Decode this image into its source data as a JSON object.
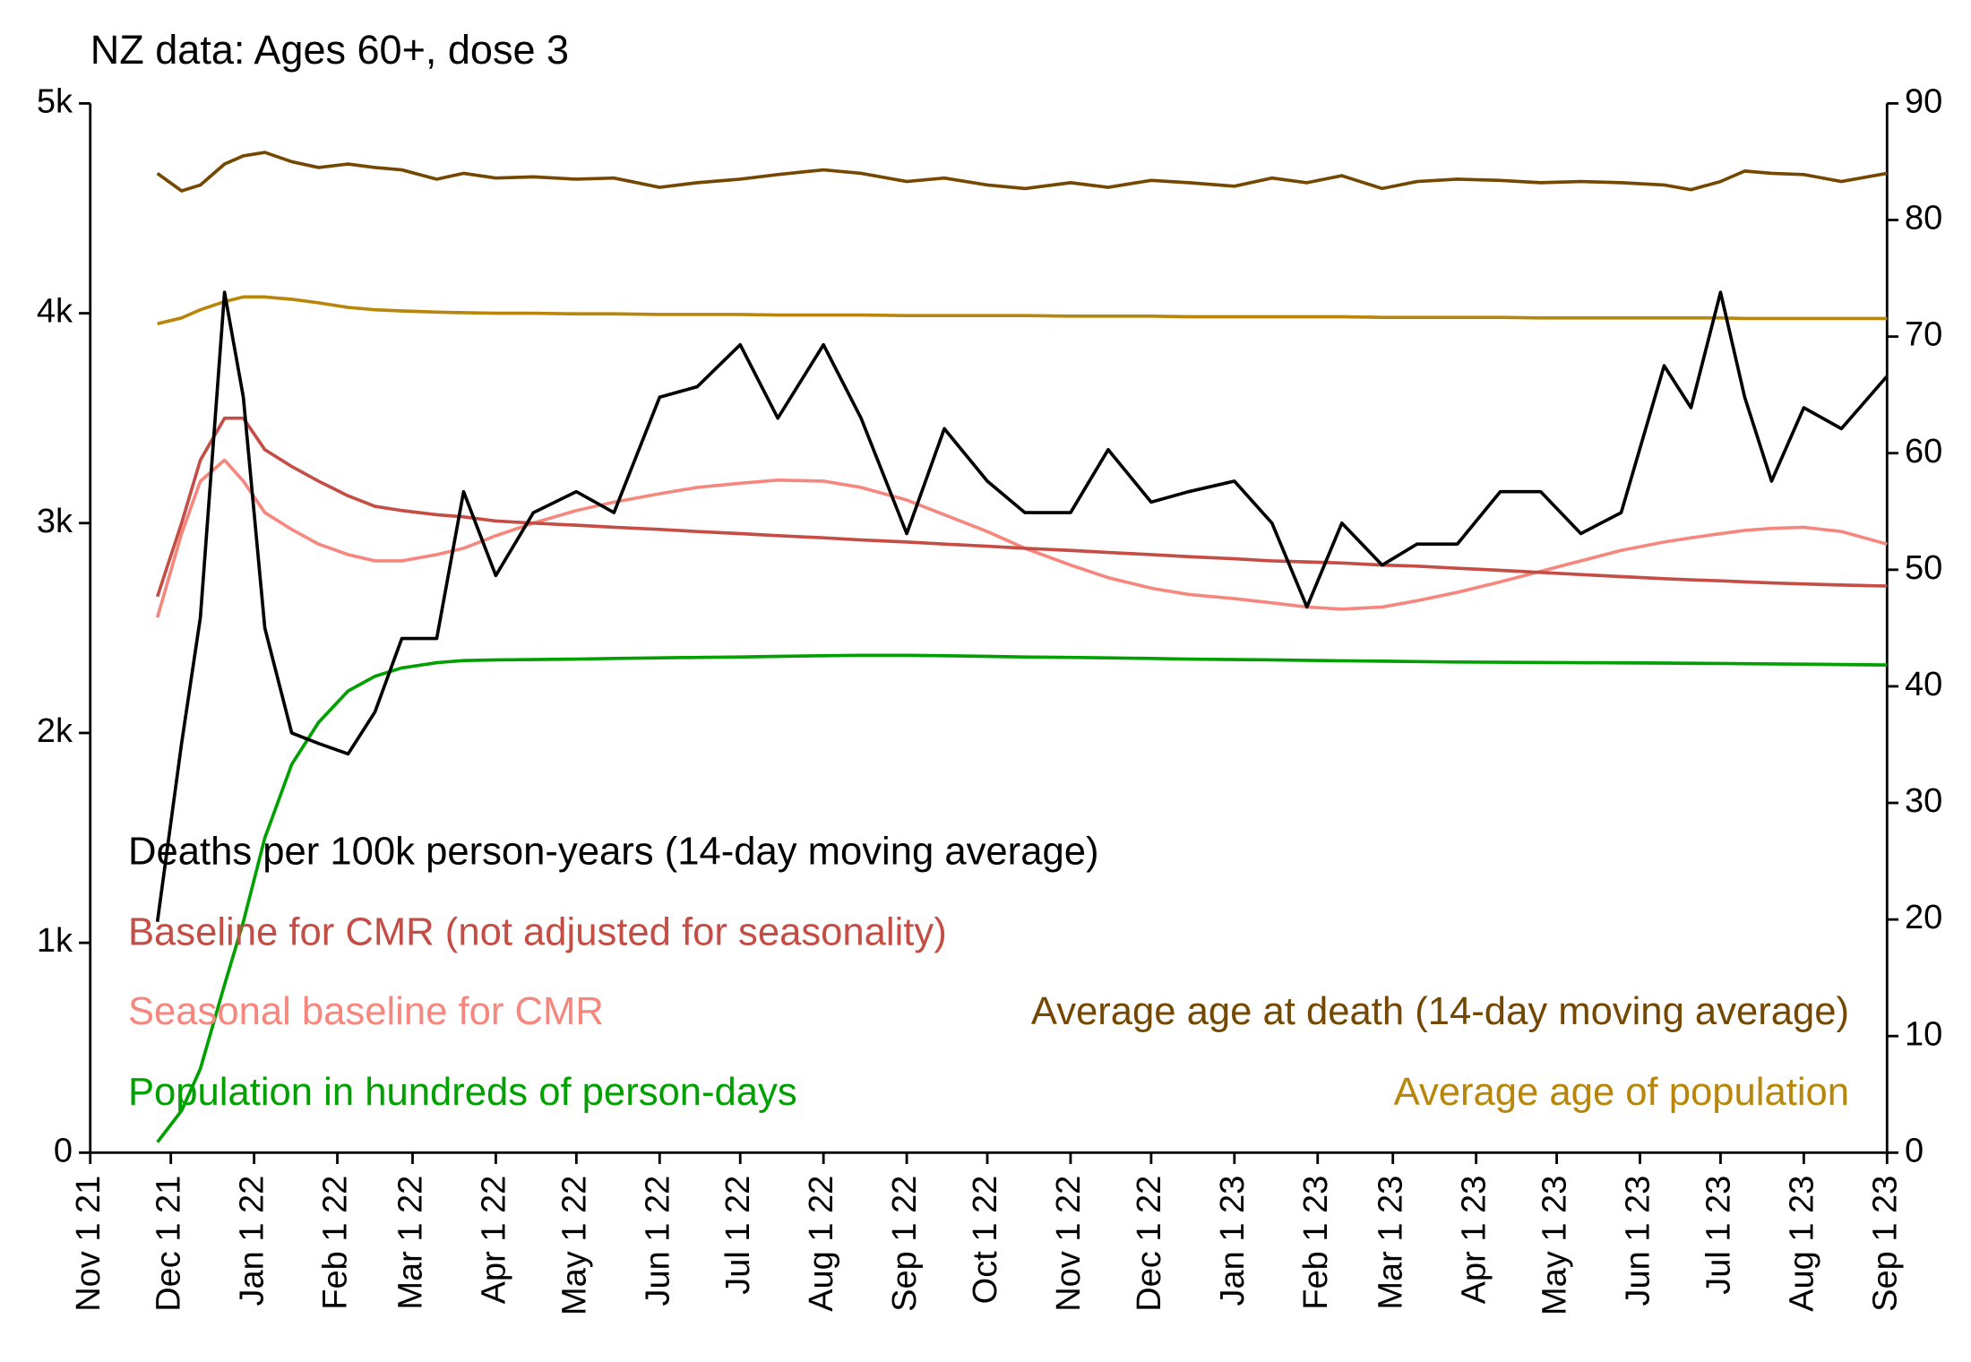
{
  "chart_data": {
    "type": "line",
    "title": "NZ data: Ages 60+, dose 3",
    "x": [
      "2021-11-26",
      "2021-12-05",
      "2021-12-12",
      "2021-12-21",
      "2021-12-28",
      "2022-01-05",
      "2022-01-15",
      "2022-01-25",
      "2022-02-05",
      "2022-02-15",
      "2022-02-25",
      "2022-03-10",
      "2022-03-20",
      "2022-04-01",
      "2022-04-15",
      "2022-05-01",
      "2022-05-15",
      "2022-06-01",
      "2022-06-15",
      "2022-07-01",
      "2022-07-15",
      "2022-08-01",
      "2022-08-15",
      "2022-09-01",
      "2022-09-15",
      "2022-10-01",
      "2022-10-15",
      "2022-11-01",
      "2022-11-15",
      "2022-12-01",
      "2022-12-15",
      "2023-01-01",
      "2023-01-15",
      "2023-01-28",
      "2023-02-10",
      "2023-02-25",
      "2023-03-10",
      "2023-03-25",
      "2023-04-10",
      "2023-04-25",
      "2023-05-10",
      "2023-05-25",
      "2023-06-10",
      "2023-06-20",
      "2023-07-01",
      "2023-07-10",
      "2023-07-20",
      "2023-08-01",
      "2023-08-15",
      "2023-09-01"
    ],
    "xlim": [
      "2021-11-01",
      "2023-09-01"
    ],
    "xticks": [
      {
        "value": "2021-11-01",
        "label": "Nov 1 21"
      },
      {
        "value": "2021-12-01",
        "label": "Dec 1 21"
      },
      {
        "value": "2022-01-01",
        "label": "Jan 1 22"
      },
      {
        "value": "2022-02-01",
        "label": "Feb 1 22"
      },
      {
        "value": "2022-03-01",
        "label": "Mar 1 22"
      },
      {
        "value": "2022-04-01",
        "label": "Apr 1 22"
      },
      {
        "value": "2022-05-01",
        "label": "May 1 22"
      },
      {
        "value": "2022-06-01",
        "label": "Jun 1 22"
      },
      {
        "value": "2022-07-01",
        "label": "Jul 1 22"
      },
      {
        "value": "2022-08-01",
        "label": "Aug 1 22"
      },
      {
        "value": "2022-09-01",
        "label": "Sep 1 22"
      },
      {
        "value": "2022-10-01",
        "label": "Oct 1 22"
      },
      {
        "value": "2022-11-01",
        "label": "Nov 1 22"
      },
      {
        "value": "2022-12-01",
        "label": "Dec 1 22"
      },
      {
        "value": "2023-01-01",
        "label": "Jan 1 23"
      },
      {
        "value": "2023-02-01",
        "label": "Feb 1 23"
      },
      {
        "value": "2023-03-01",
        "label": "Mar 1 23"
      },
      {
        "value": "2023-04-01",
        "label": "Apr 1 23"
      },
      {
        "value": "2023-05-01",
        "label": "May 1 23"
      },
      {
        "value": "2023-06-01",
        "label": "Jun 1 23"
      },
      {
        "value": "2023-07-01",
        "label": "Jul 1 23"
      },
      {
        "value": "2023-08-01",
        "label": "Aug 1 23"
      },
      {
        "value": "2023-09-01",
        "label": "Sep 1 23"
      }
    ],
    "ylim": [
      0,
      5000
    ],
    "yticks": [
      0,
      {
        "value": 1000,
        "label": "1k"
      },
      {
        "value": 2000,
        "label": "2k"
      },
      {
        "value": 3000,
        "label": "3k"
      },
      {
        "value": 4000,
        "label": "4k"
      },
      {
        "value": 5000,
        "label": "5k"
      }
    ],
    "y2lim": [
      0,
      90
    ],
    "y2ticks": [
      0,
      10,
      20,
      30,
      40,
      50,
      60,
      70,
      80,
      90
    ],
    "series": [
      {
        "name": "Deaths per 100k person-years (14-day moving average)",
        "color": "#000000",
        "values": [
          1100,
          1950,
          2550,
          4100,
          3600,
          2500,
          2000,
          1950,
          1900,
          2100,
          2450,
          2450,
          3150,
          2750,
          3050,
          3150,
          3050,
          3600,
          3650,
          3850,
          3500,
          3850,
          3500,
          2950,
          3450,
          3200,
          3050,
          3050,
          3350,
          3100,
          3150,
          3200,
          3000,
          2600,
          3000,
          2800,
          2900,
          2900,
          3150,
          3150,
          2950,
          3050,
          3750,
          3550,
          4100,
          3600,
          3200,
          3550,
          3450,
          3700
        ]
      },
      {
        "name": "Baseline for CMR (not adjusted for seasonality)",
        "color": "#c44e45",
        "values": [
          2650,
          3000,
          3300,
          3500,
          3500,
          3350,
          3270,
          3200,
          3130,
          3080,
          3060,
          3040,
          3030,
          3010,
          3000,
          2990,
          2980,
          2970,
          2960,
          2950,
          2940,
          2930,
          2920,
          2910,
          2900,
          2890,
          2880,
          2870,
          2860,
          2850,
          2840,
          2830,
          2820,
          2815,
          2810,
          2800,
          2795,
          2785,
          2775,
          2765,
          2755,
          2745,
          2735,
          2730,
          2725,
          2720,
          2715,
          2710,
          2705,
          2700
        ]
      },
      {
        "name": "Seasonal baseline for CMR",
        "color": "#f5877e",
        "values": [
          2550,
          2950,
          3200,
          3300,
          3200,
          3050,
          2970,
          2900,
          2850,
          2820,
          2820,
          2850,
          2880,
          2940,
          3000,
          3060,
          3100,
          3140,
          3170,
          3190,
          3205,
          3200,
          3170,
          3110,
          3040,
          2960,
          2880,
          2800,
          2740,
          2690,
          2660,
          2640,
          2620,
          2600,
          2590,
          2600,
          2630,
          2670,
          2720,
          2770,
          2820,
          2870,
          2910,
          2930,
          2950,
          2965,
          2975,
          2980,
          2960,
          2900
        ]
      },
      {
        "name": "Population in hundreds of person-days",
        "color": "#00a000",
        "values": [
          50,
          200,
          400,
          800,
          1100,
          1500,
          1850,
          2050,
          2200,
          2270,
          2310,
          2335,
          2345,
          2348,
          2350,
          2352,
          2355,
          2358,
          2360,
          2362,
          2365,
          2368,
          2370,
          2370,
          2368,
          2365,
          2362,
          2360,
          2358,
          2355,
          2352,
          2350,
          2348,
          2346,
          2344,
          2342,
          2340,
          2338,
          2337,
          2336,
          2335,
          2334,
          2333,
          2332,
          2331,
          2330,
          2329,
          2328,
          2326,
          2324
        ]
      },
      {
        "name": "Average age at death (14-day moving average)",
        "color": "#744800",
        "axis": "y2",
        "values": [
          84.0,
          82.5,
          83.0,
          84.8,
          85.5,
          85.8,
          85.0,
          84.5,
          84.8,
          84.5,
          84.3,
          83.5,
          84.0,
          83.6,
          83.7,
          83.5,
          83.6,
          82.8,
          83.2,
          83.5,
          83.9,
          84.3,
          84.0,
          83.3,
          83.6,
          83.0,
          82.7,
          83.2,
          82.8,
          83.4,
          83.2,
          82.9,
          83.6,
          83.2,
          83.8,
          82.7,
          83.3,
          83.5,
          83.4,
          83.2,
          83.3,
          83.2,
          83.0,
          82.6,
          83.3,
          84.2,
          84.0,
          83.9,
          83.3,
          84.0
        ]
      },
      {
        "name": "Average age of population",
        "color": "#b8860b",
        "axis": "y2",
        "values": [
          71.1,
          71.6,
          72.3,
          73.0,
          73.4,
          73.4,
          73.2,
          72.9,
          72.5,
          72.3,
          72.2,
          72.1,
          72.05,
          72.0,
          72.0,
          71.95,
          71.95,
          71.9,
          71.9,
          71.9,
          71.85,
          71.85,
          71.85,
          71.8,
          71.8,
          71.8,
          71.8,
          71.75,
          71.75,
          71.75,
          71.7,
          71.7,
          71.7,
          71.7,
          71.7,
          71.65,
          71.65,
          71.65,
          71.65,
          71.6,
          71.6,
          71.6,
          71.6,
          71.6,
          71.6,
          71.55,
          71.55,
          71.55,
          71.55,
          71.55
        ]
      }
    ]
  }
}
